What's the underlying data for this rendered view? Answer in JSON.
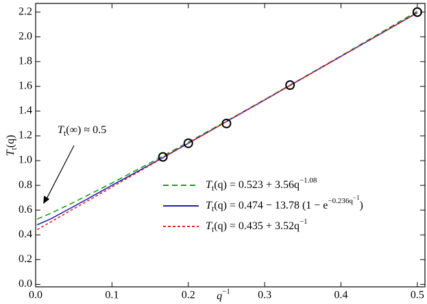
{
  "chart_data": {
    "type": "line",
    "x_label": [
      "q",
      "−1"
    ],
    "y_label": [
      "T",
      "t",
      "(q)"
    ],
    "xlim": [
      0,
      0.51
    ],
    "ylim": [
      -0.02,
      2.27
    ],
    "xticks": [
      {
        "value": 0,
        "label": "0.0"
      },
      0.1,
      0.2,
      0.3,
      0.4,
      0.5
    ],
    "yticks": [
      {
        "value": 0,
        "label": "0.0"
      },
      0.2,
      0.4,
      0.6,
      0.8,
      {
        "value": 1,
        "label": "1.0"
      },
      1.2,
      1.4,
      1.6,
      1.8,
      {
        "value": 2,
        "label": "2.0"
      },
      2.2
    ],
    "points": {
      "color": "#000000",
      "x": [
        0.1667,
        0.2,
        0.25,
        0.3333,
        0.5
      ],
      "values": [
        1.03,
        1.14,
        1.3,
        1.61,
        2.2
      ]
    },
    "series": [
      {
        "name": [
          "T",
          "t",
          "(q) = 0.523 + 3.56q",
          "−1.08"
        ],
        "color": "#1a9a1a",
        "dash": "8,5",
        "x": [
          0.002,
          0.02,
          0.05,
          0.1,
          0.15,
          0.2,
          0.25,
          0.3,
          0.35,
          0.4,
          0.45,
          0.5
        ],
        "values": [
          0.527,
          0.575,
          0.663,
          0.819,
          0.982,
          1.149,
          1.319,
          1.493,
          1.669,
          1.846,
          2.026,
          2.207
        ]
      },
      {
        "name": [
          "T",
          "t",
          "(q) = 0.474 − 13.78 (1 − e",
          "−0.236q",
          "−1",
          ")"
        ],
        "color": "#1f1fb0",
        "dash": "",
        "x": [
          0.002,
          0.02,
          0.05,
          0.1,
          0.15,
          0.2,
          0.25,
          0.3,
          0.35,
          0.4,
          0.45,
          0.5
        ],
        "values": [
          0.481,
          0.53,
          0.63,
          0.8,
          0.968,
          1.14,
          1.315,
          1.49,
          1.666,
          1.842,
          2.018,
          2.195
        ]
      },
      {
        "name": [
          "T",
          "t",
          "(q) = 0.435 + 3.52q",
          "−1"
        ],
        "color": "#e8261e",
        "dash": "4,3",
        "x": [
          0.002,
          0.02,
          0.05,
          0.1,
          0.15,
          0.2,
          0.25,
          0.3,
          0.35,
          0.4,
          0.45,
          0.5
        ],
        "values": [
          0.442,
          0.505,
          0.611,
          0.787,
          0.963,
          1.139,
          1.315,
          1.491,
          1.667,
          1.843,
          2.019,
          2.195
        ]
      }
    ],
    "annotation": {
      "text": [
        "T",
        "t",
        "(∞) ≈ 0.5"
      ],
      "x": 0.01,
      "y": 0.65
    }
  }
}
